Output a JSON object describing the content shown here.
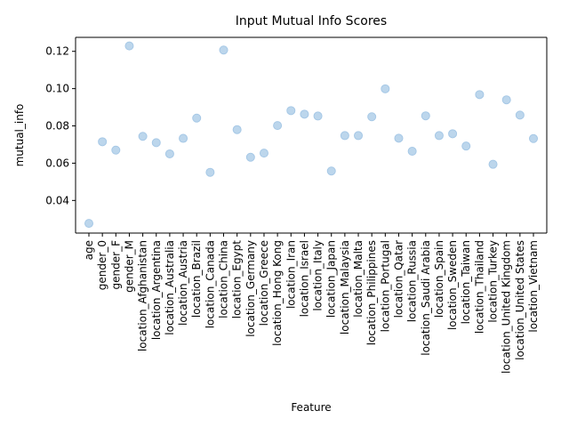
{
  "chart_data": {
    "type": "scatter",
    "title": "Input Mutual Info Scores",
    "xlabel": "Feature",
    "ylabel": "mutual_info",
    "ylim": [
      0.0225,
      0.1275
    ],
    "yticks": [
      0.04,
      0.06,
      0.08,
      0.1,
      0.12
    ],
    "ytick_labels": [
      "0.04",
      "0.06",
      "0.08",
      "0.10",
      "0.12"
    ],
    "grid": false,
    "marker_color": "#a6c8e6",
    "categories": [
      "age",
      "gender_0",
      "gender_F",
      "gender_M",
      "location_Afghanistan",
      "location_Argentina",
      "location_Australia",
      "location_Austria",
      "location_Brazil",
      "location_Canada",
      "location_China",
      "location_Egypt",
      "location_Germany",
      "location_Greece",
      "location_Hong Kong",
      "location_Iran",
      "location_Israel",
      "location_Italy",
      "location_Japan",
      "location_Malaysia",
      "location_Malta",
      "location_Philippines",
      "location_Portugal",
      "location_Qatar",
      "location_Russia",
      "location_Saudi Arabia",
      "location_Spain",
      "location_Sweden",
      "location_Taiwan",
      "location_Thailand",
      "location_Turkey",
      "location_United Kingdom",
      "location_United States",
      "location_Vietnam"
    ],
    "values": [
      0.0277,
      0.0715,
      0.067,
      0.1229,
      0.0744,
      0.071,
      0.065,
      0.0733,
      0.0842,
      0.0551,
      0.1207,
      0.078,
      0.0632,
      0.0654,
      0.0802,
      0.0882,
      0.0863,
      0.0853,
      0.0558,
      0.0748,
      0.0748,
      0.0849,
      0.0999,
      0.0734,
      0.0664,
      0.0854,
      0.0748,
      0.0758,
      0.0692,
      0.0968,
      0.0594,
      0.094,
      0.0858,
      0.0732
    ]
  }
}
